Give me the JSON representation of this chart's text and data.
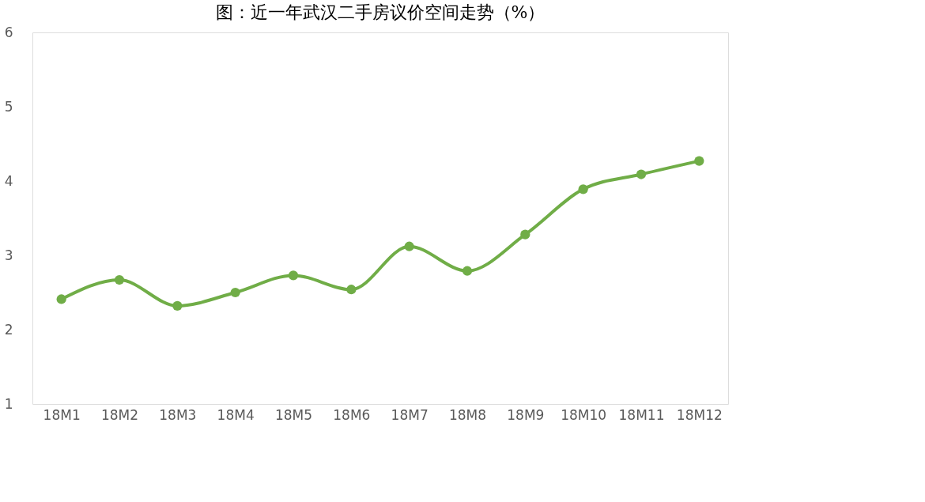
{
  "chart_data": {
    "type": "line",
    "title": "图：近一年武汉二手房议价空间走势（%）",
    "categories": [
      "18M1",
      "18M2",
      "18M3",
      "18M4",
      "18M5",
      "18M6",
      "18M7",
      "18M8",
      "18M9",
      "18M10",
      "18M11",
      "18M12"
    ],
    "series": [
      {
        "color": "#70ad47",
        "values": [
          2.41,
          2.67,
          2.32,
          2.5,
          2.73,
          2.54,
          3.12,
          2.79,
          3.28,
          3.89,
          4.09,
          4.27
        ]
      }
    ],
    "ylim": [
      1,
      6
    ],
    "yticks": [
      1,
      2,
      3,
      4,
      5,
      6
    ],
    "grid": false,
    "marker": "circle",
    "line_style": "solid"
  }
}
